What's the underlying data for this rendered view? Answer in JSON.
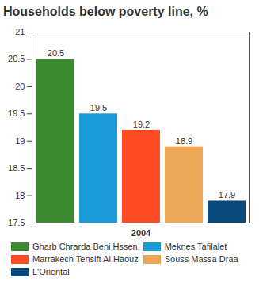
{
  "chart_data": {
    "type": "bar",
    "title": "Households below poverty line, %",
    "categories": [
      "2004"
    ],
    "series": [
      {
        "name": "Gharb Chrarda Beni Hssen",
        "color": "#3b8a2f",
        "values": [
          20.5
        ]
      },
      {
        "name": "Meknes Tafilalet",
        "color": "#1b9bd7",
        "values": [
          19.5
        ]
      },
      {
        "name": "Marrakech Tensift Al Haouz",
        "color": "#ff4b23",
        "values": [
          19.2
        ]
      },
      {
        "name": "Souss Massa Draa",
        "color": "#eda654",
        "values": [
          18.9
        ]
      },
      {
        "name": "L'Oriental",
        "color": "#06497a",
        "values": [
          17.9
        ]
      }
    ],
    "ylim": [
      17.5,
      21
    ],
    "yticks": [
      17.5,
      18,
      18.5,
      19,
      19.5,
      20,
      20.5,
      21
    ],
    "grid": false,
    "data_labels": true,
    "legend": "bottom"
  }
}
